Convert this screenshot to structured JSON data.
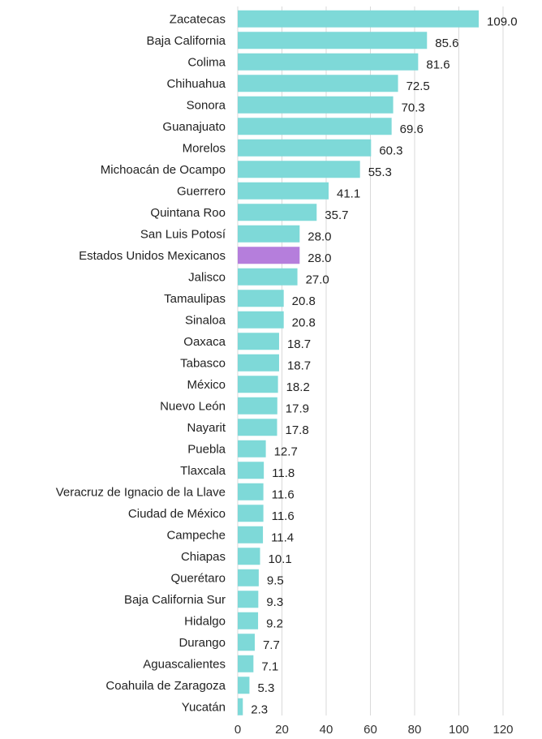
{
  "chart_data": {
    "type": "bar",
    "orientation": "horizontal",
    "title": "",
    "xlabel": "",
    "ylabel": "",
    "xlim": [
      0,
      120
    ],
    "xticks": [
      0,
      20,
      40,
      60,
      80,
      100,
      120
    ],
    "grid": "vertical",
    "legend": "none",
    "colors": {
      "default": "#7ed9d8",
      "highlight": "#b57edc"
    },
    "highlight_category": "Estados Unidos Mexicanos",
    "categories": [
      "Zacatecas",
      "Baja California",
      "Colima",
      "Chihuahua",
      "Sonora",
      "Guanajuato",
      "Morelos",
      "Michoacán de Ocampo",
      "Guerrero",
      "Quintana Roo",
      "San Luis Potosí",
      "Estados Unidos Mexicanos",
      "Jalisco",
      "Tamaulipas",
      "Sinaloa",
      "Oaxaca",
      "Tabasco",
      "México",
      "Nuevo León",
      "Nayarit",
      "Puebla",
      "Tlaxcala",
      "Veracruz de Ignacio de la Llave",
      "Ciudad de México",
      "Campeche",
      "Chiapas",
      "Querétaro",
      "Baja California Sur",
      "Hidalgo",
      "Durango",
      "Aguascalientes",
      "Coahuila de Zaragoza",
      "Yucatán"
    ],
    "values": [
      109.0,
      85.6,
      81.6,
      72.5,
      70.3,
      69.6,
      60.3,
      55.3,
      41.1,
      35.7,
      28.0,
      28.0,
      27.0,
      20.8,
      20.8,
      18.7,
      18.7,
      18.2,
      17.9,
      17.8,
      12.7,
      11.8,
      11.6,
      11.6,
      11.4,
      10.1,
      9.5,
      9.3,
      9.2,
      7.7,
      7.1,
      5.3,
      2.3
    ],
    "value_labels": [
      "109.0",
      "85.6",
      "81.6",
      "72.5",
      "70.3",
      "69.6",
      "60.3",
      "55.3",
      "41.1",
      "35.7",
      "28.0",
      "28.0",
      "27.0",
      "20.8",
      "20.8",
      "18.7",
      "18.7",
      "18.2",
      "17.9",
      "17.8",
      "12.7",
      "11.8",
      "11.6",
      "11.6",
      "11.4",
      "10.1",
      "9.5",
      "9.3",
      "9.2",
      "7.7",
      "7.1",
      "5.3",
      "2.3"
    ]
  }
}
